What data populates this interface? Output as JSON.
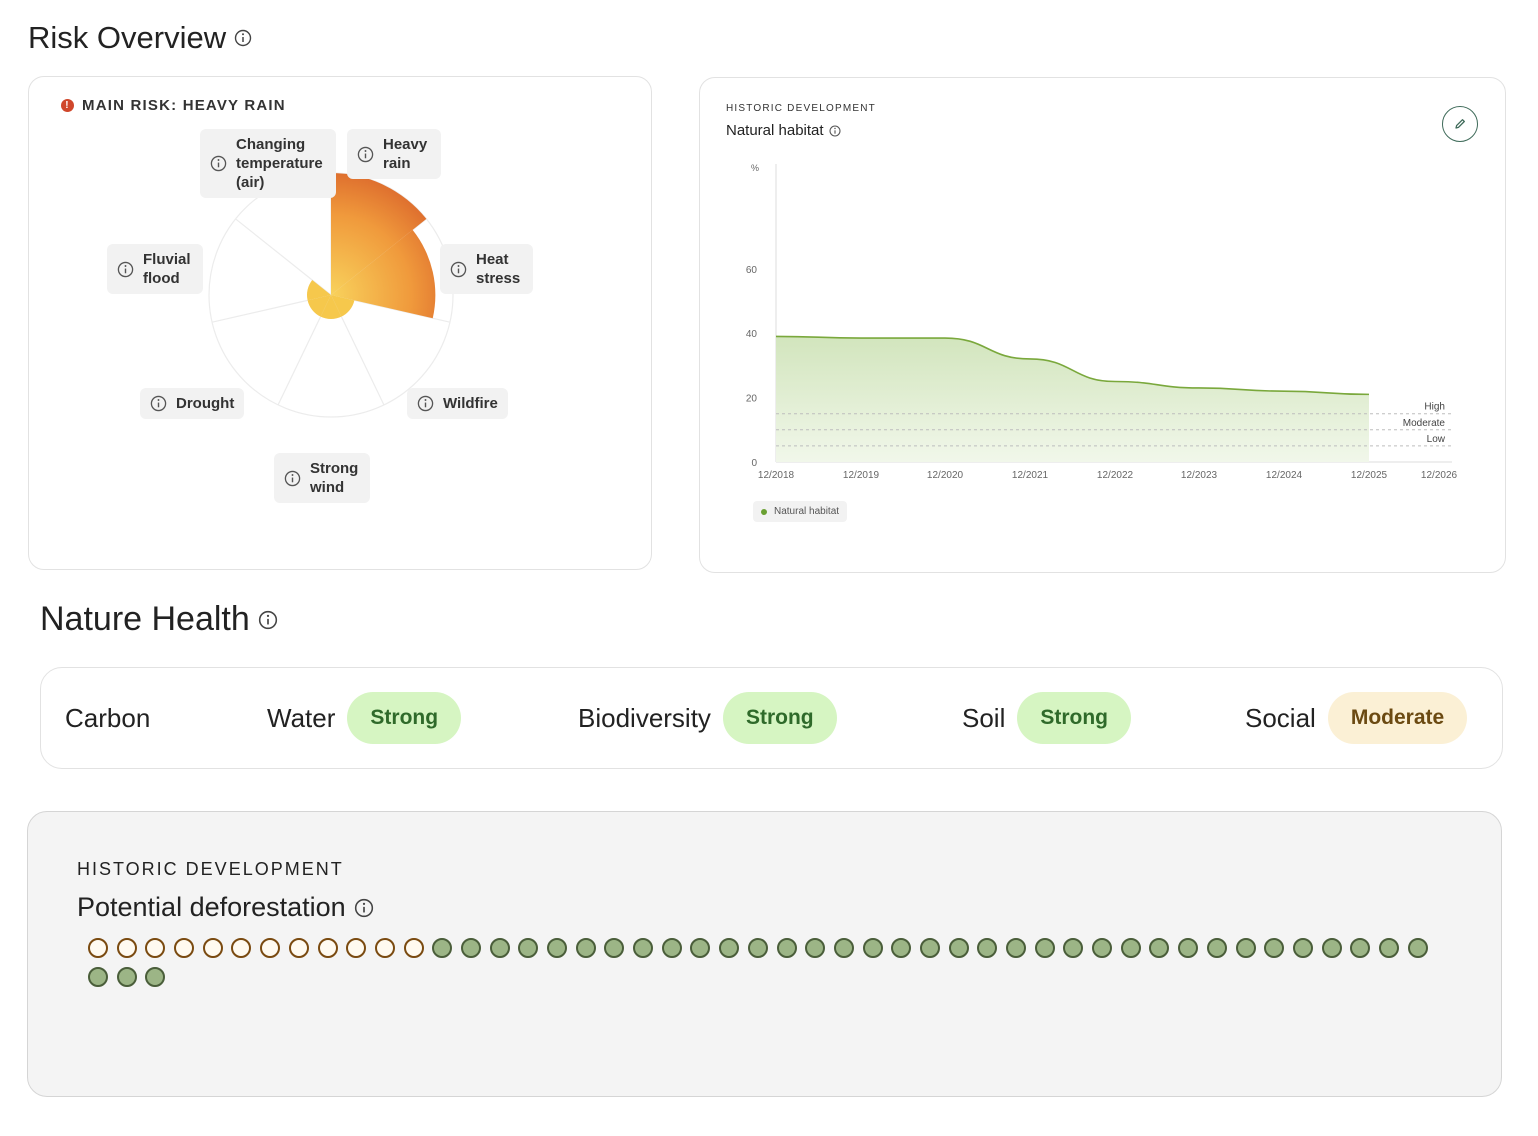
{
  "risk_overview": {
    "title": "Risk Overview",
    "main_risk_label": "MAIN RISK: HEAVY RAIN",
    "categories": [
      {
        "label": "Heavy rain",
        "value": 1.0,
        "color": "#e06a2a"
      },
      {
        "label": "Heat stress",
        "value": 0.82,
        "color": "#ea8c30"
      },
      {
        "label": "Wildfire",
        "value": 0.1,
        "color": "#f4c040"
      },
      {
        "label": "Strong wind",
        "value": 0.1,
        "color": "#f6c94a"
      },
      {
        "label": "Drought",
        "value": 0.1,
        "color": "#f6cf50"
      },
      {
        "label": "Fluvial flood",
        "value": 0.1,
        "color": "#f4c448"
      },
      {
        "label": "Changing temperature (air)",
        "value": 0.0,
        "color": "#f0b040"
      }
    ]
  },
  "historic_chart": {
    "eyebrow": "HISTORIC DEVELOPMENT",
    "title": "Natural habitat",
    "legend_label": "Natural habitat",
    "chart_data": {
      "type": "area",
      "title": "Natural habitat",
      "ylabel": "%",
      "xlabel": "",
      "x": [
        "12/2018",
        "12/2019",
        "12/2020",
        "12/2021",
        "12/2022",
        "12/2023",
        "12/2024",
        "12/2025"
      ],
      "series": [
        {
          "name": "Natural habitat",
          "values": [
            39,
            38.5,
            38.5,
            32,
            25,
            23,
            22,
            21
          ],
          "color": "#7aa83c"
        }
      ],
      "x_ticks": [
        "12/2018",
        "12/2019",
        "12/2020",
        "12/2021",
        "12/2022",
        "12/2023",
        "12/2024",
        "12/2025",
        "12/2026"
      ],
      "y_ticks": [
        "0",
        "20",
        "40",
        "60",
        "%"
      ],
      "ylim": [
        0,
        90
      ],
      "thresholds": [
        {
          "label": "High",
          "value": 15
        },
        {
          "label": "Moderate",
          "value": 10
        },
        {
          "label": "Low",
          "value": 5
        }
      ],
      "grid": false,
      "legend": "bottom-left"
    }
  },
  "nature_health": {
    "title": "Nature Health",
    "items": [
      {
        "label": "Carbon",
        "status": "",
        "tone": ""
      },
      {
        "label": "Water",
        "status": "Strong",
        "tone": "strong"
      },
      {
        "label": "Biodiversity",
        "status": "Strong",
        "tone": "strong"
      },
      {
        "label": "Soil",
        "status": "Strong",
        "tone": "strong"
      },
      {
        "label": "Social",
        "status": "Moderate",
        "tone": "moderate"
      }
    ]
  },
  "deforestation": {
    "eyebrow": "HISTORIC DEVELOPMENT",
    "title": "Potential deforestation",
    "outlined_count": 12,
    "filled_count": 38
  }
}
